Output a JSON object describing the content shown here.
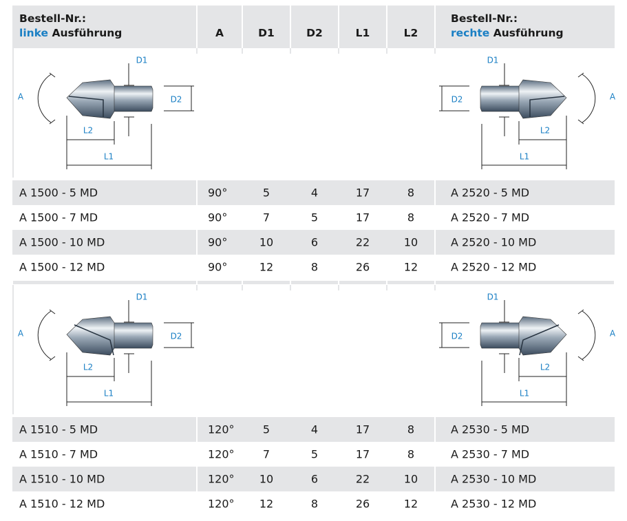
{
  "header": {
    "left": {
      "line1": "Bestell-Nr.:",
      "emphasis": "linke",
      "rest": "Ausführung"
    },
    "columns": [
      "A",
      "D1",
      "D2",
      "L1",
      "L2"
    ],
    "right": {
      "line1": "Bestell-Nr.:",
      "emphasis": "rechte",
      "rest": "Ausführung"
    }
  },
  "diagram_labels": {
    "A": "A",
    "D1": "D1",
    "D2": "D2",
    "L1": "L1",
    "L2": "L2"
  },
  "sections": [
    {
      "rows": [
        [
          "A 1500 - 5 MD",
          "90°",
          5,
          4,
          17,
          8,
          "A 2520 - 5 MD"
        ],
        [
          "A 1500 - 7 MD",
          "90°",
          7,
          5,
          17,
          8,
          "A 2520 - 7 MD"
        ],
        [
          "A 1500 - 10 MD",
          "90°",
          10,
          6,
          22,
          10,
          "A 2520 - 10 MD"
        ],
        [
          "A 1500 - 12 MD",
          "90°",
          12,
          8,
          26,
          12,
          "A 2520 - 12 MD"
        ]
      ]
    },
    {
      "rows": [
        [
          "A 1510 - 5 MD",
          "120°",
          5,
          4,
          17,
          8,
          "A 2530 - 5 MD"
        ],
        [
          "A 1510 - 7 MD",
          "120°",
          7,
          5,
          17,
          8,
          "A 2530 - 7 MD"
        ],
        [
          "A 1510 - 10 MD",
          "120°",
          10,
          6,
          22,
          10,
          "A 2530 - 10 MD"
        ],
        [
          "A 1510 - 12 MD",
          "120°",
          12,
          8,
          26,
          12,
          "A 2530 - 12 MD"
        ]
      ]
    }
  ]
}
